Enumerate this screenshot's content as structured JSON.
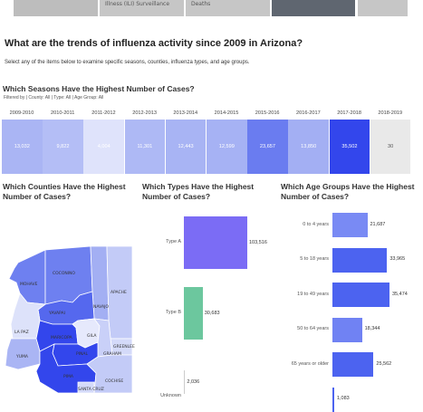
{
  "topbar": {
    "tabs": [
      {
        "label": "Illness (ILI) Surveillance"
      },
      {
        "label": "Deaths"
      },
      {
        "label": ""
      },
      {
        "label": ""
      }
    ]
  },
  "headline": "What are the trends of influenza activity since 2009 in Arizona?",
  "subline": "Select any of the items below to examine specific seasons, counties, influenza types, and age groups.",
  "seasons_section": {
    "title": "Which Seasons Have the Highest Number of Cases?",
    "filter": "Filtered by | County: All | Type: All | Age Group: All",
    "seasons": [
      {
        "label": "2009-2010",
        "value": "13,032"
      },
      {
        "label": "2010-2011",
        "value": "9,822"
      },
      {
        "label": "2011-2012",
        "value": "4,004"
      },
      {
        "label": "2012-2013",
        "value": "11,301"
      },
      {
        "label": "2013-2014",
        "value": "12,443"
      },
      {
        "label": "2014-2015",
        "value": "12,599"
      },
      {
        "label": "2015-2016",
        "value": "23,657"
      },
      {
        "label": "2016-2017",
        "value": "13,850"
      },
      {
        "label": "2017-2018",
        "value": "35,502"
      },
      {
        "label": "2018-2019",
        "value": "30"
      }
    ],
    "colors": [
      "#aab5f4",
      "#b4bef6",
      "#dfe3fb",
      "#aeb9f5",
      "#a8b4f4",
      "#a6b2f4",
      "#6a7cf0",
      "#a3aff3",
      "#3346ec",
      "#e9e9e9"
    ]
  },
  "counties_section": {
    "title": "Which Counties Have the Highest Number of Cases?",
    "county_labels": [
      "COCONINO",
      "MOHAVE",
      "APACHE",
      "YAVAPAI",
      "NAVAJO",
      "LA PAZ",
      "MARICOPA",
      "GILA",
      "GREENLEE",
      "YUMA",
      "PINAL",
      "GRAHAM",
      "PIMA",
      "COCHISE",
      "SANTA CRUZ"
    ]
  },
  "types_section": {
    "title": "Which Types Have the Highest Number of Cases?",
    "types": [
      {
        "label": "Type A",
        "value": "103,516",
        "color": "#7b6cf5"
      },
      {
        "label": "Type B",
        "value": "30,683",
        "color": "#6cc79e"
      },
      {
        "label": "Unknown",
        "value": "2,036",
        "color": "#cccccc"
      }
    ]
  },
  "ages_section": {
    "title": "Which Age Groups Have the Highest Number of Cases?",
    "ages": [
      {
        "label": "0 to 4 years",
        "value": "21,687"
      },
      {
        "label": "5 to 18 years",
        "value": "33,965"
      },
      {
        "label": "19 to 49 years",
        "value": "35,474"
      },
      {
        "label": "50 to 64 years",
        "value": "18,344"
      },
      {
        "label": "65 years or older",
        "value": "25,562"
      },
      {
        "label": "",
        "value": "1,083"
      }
    ]
  }
}
